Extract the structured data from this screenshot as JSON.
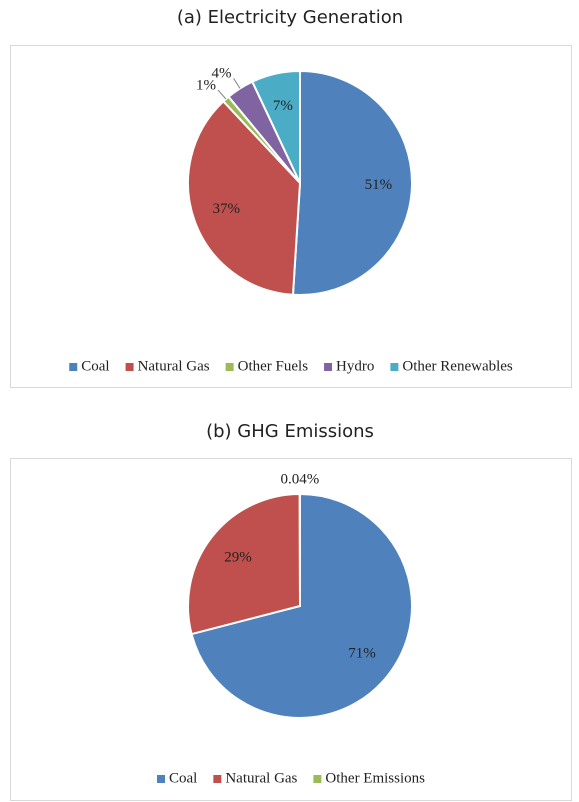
{
  "chart_data": [
    {
      "type": "pie",
      "title": "(a) Electricity Generation",
      "categories": [
        "Coal",
        "Natural Gas",
        "Other Fuels",
        "Hydro",
        "Other Renewables"
      ],
      "values": [
        51,
        37,
        1,
        4,
        7
      ],
      "value_labels": [
        "51%",
        "37%",
        "1%",
        "4%",
        "7%"
      ],
      "colors": [
        "#4f81bd",
        "#c0504d",
        "#9bbb59",
        "#8064a2",
        "#4bacc6"
      ],
      "legend": "bottom"
    },
    {
      "type": "pie",
      "title": "(b) GHG Emissions",
      "categories": [
        "Coal",
        "Natural Gas",
        "Other Emissions"
      ],
      "values": [
        71,
        29,
        0.04
      ],
      "value_labels": [
        "71%",
        "29%",
        "0.04%"
      ],
      "colors": [
        "#4f81bd",
        "#c0504d",
        "#9bbb59"
      ],
      "legend": "bottom"
    }
  ]
}
